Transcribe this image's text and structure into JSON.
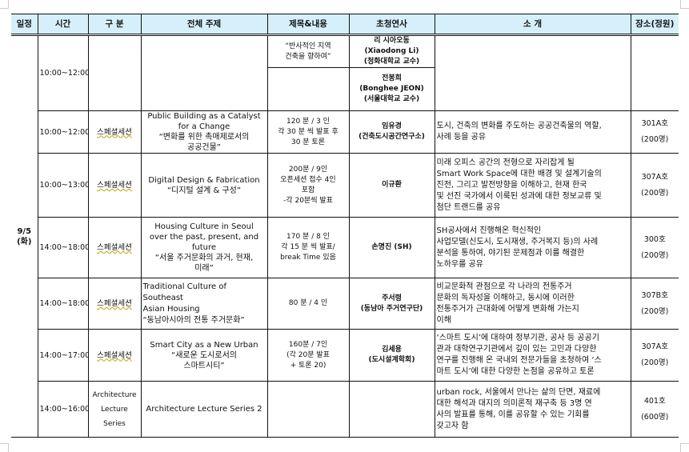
{
  "header": {
    "date": "일정",
    "time": "시간",
    "category": "구 분",
    "theme": "전체 주제",
    "title": "제목&내용",
    "speaker": "초청연사",
    "intro": "소 개",
    "venue": "장소(정원)"
  },
  "date_label": [
    "9/5",
    "(화)"
  ],
  "rows": [
    {
      "time": "10:00~12:00",
      "category": "",
      "theme": [],
      "subrows": [
        {
          "title": [
            "“반사적인 지역",
            "건축을 향하여”"
          ],
          "speaker": [
            "리 시아오동",
            "(Xiaodong Li)",
            "(청화대학교 교수)"
          ]
        },
        {
          "title": [],
          "speaker": [
            "전봉희",
            "(Bonghee JEON)",
            "(서울대학교 교수)"
          ]
        }
      ],
      "intro": [],
      "venue": []
    },
    {
      "time": "10:00~12:00",
      "category": "스페셜세션",
      "theme": [
        "Public Building as a Catalyst",
        "for a Change",
        "“변화를 위한 촉매제로서의",
        "공공건물”"
      ],
      "title": [
        "120 분 / 3 인",
        "각 30 분 씩 발표 후",
        "30 분 토론"
      ],
      "speaker": [
        "임유경",
        "(건축도시공간연구소)"
      ],
      "intro": [
        "도시, 건축의 변화를 주도하는 공공건축물의 역할,",
        "사례 등을 공유"
      ],
      "venue": [
        "301A호",
        "(200명)"
      ]
    },
    {
      "time": "10:00~13:00",
      "category": "스페셜세션",
      "theme": [
        "Digital Design & Fabrication",
        "“디지털 설계 & 구성”"
      ],
      "title": [
        "200분 / 9인",
        "오픈세션 접수 4인",
        "포함",
        "-각 20분씩 발표"
      ],
      "speaker": [
        "이규환"
      ],
      "intro": [
        "미래 오피스 공간의 전형으로 자리잡게 될",
        "Smart Work Space에 대한 배경 및 설계기술의",
        "진전, 그리고 발전방향을 이해하고, 현재 한국",
        "및 선진 국가에서 이룩된 성과에 대한 정보교류 및",
        "첨단 트랜드를 공유"
      ],
      "venue": [
        "307A호",
        "(200명)"
      ]
    },
    {
      "time": "14:00~18:00",
      "category": "스페셜세션",
      "theme": [
        "Housing Culture in Seoul",
        "over the past, present, and",
        "future",
        "“서울 주거문화의 과거, 현재,",
        "미래”"
      ],
      "title": [
        "170 분 / 8 인",
        "각 15 분 씩 발표/",
        "break Time 있음"
      ],
      "speaker": [
        "손명진 (SH)"
      ],
      "intro": [
        "SH공사에서 진행해온 혁신적인",
        "사업모델(신도시, 도시재생, 주거복지 등)의 사례",
        "분석을 통하여, 야기된 문제점과 이를 해결한",
        "노하우를 공유"
      ],
      "venue": [
        "300호",
        "(200명)"
      ]
    },
    {
      "time": "14:00~18:00",
      "category": "스페셜세션",
      "theme": [
        "Traditional Culture of Southeast",
        "Asian Housing",
        "“동남아시아의 전통 주거문화”"
      ],
      "title": [
        "80 분 / 4 인"
      ],
      "speaker": [
        "주서령",
        "(동남아 주거연구단)"
      ],
      "intro": [
        "비교문화적 관점으로 각 나라의 전통주거",
        "문화의 독자성을 이해하고, 동시에 이러한",
        "전통주거가 근대화에 어떻게 변화해 가는지",
        "이해"
      ],
      "venue": [
        "307B호",
        "(200명)"
      ]
    },
    {
      "time": "14:00~17:00",
      "category": "스페셜세션",
      "theme": [
        "Smart City as a New Urban",
        "“새로운 도시로서의",
        "스마트시티”"
      ],
      "title": [
        "160분 / 7인",
        "(각 20분 발표",
        "+ 토론 20)"
      ],
      "speaker": [
        "김세용",
        "(도시설계학회)"
      ],
      "intro": [
        "‘스마트 도시’에 대하여 정부기관, 공사 등 공공기",
        "관과 대학연구기관에서 깊이 있는 고민과 다양한",
        "연구를 진행해 온 국내외 전문가들을 초청하여 ‘스",
        "마트 도시’에 대한 다양한 논점을 공유하고 토론"
      ],
      "venue": [
        "307A호",
        "(200명)"
      ]
    },
    {
      "time": "14:00~16:00",
      "category": "Architecture Lecture Series",
      "theme": [
        "Architecture Lecture Series 2"
      ],
      "title": [],
      "speaker": [],
      "intro": [
        "urban rock, 서울에서 만나는 삶의 단면, 재료에",
        "대한 해석과 대지의 의미론적 재구축 등 3명 연",
        "사의 발표를 통해, 이를 공유할 수 있는 기회를",
        "갖고자 함"
      ],
      "venue": [
        "401호",
        "(600명)"
      ]
    }
  ]
}
